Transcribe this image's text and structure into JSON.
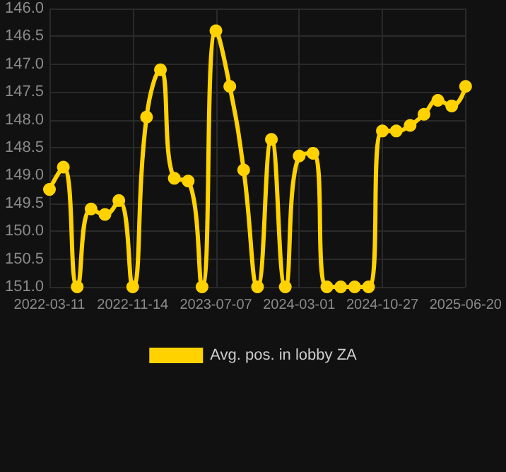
{
  "chart_data": {
    "type": "line",
    "categories": [
      "2022-03-11",
      null,
      null,
      null,
      null,
      null,
      "2022-11-14",
      null,
      null,
      null,
      null,
      null,
      "2023-07-07",
      null,
      null,
      null,
      null,
      null,
      "2024-03-01",
      null,
      null,
      null,
      null,
      null,
      "2024-10-27",
      null,
      null,
      null,
      null,
      null,
      "2025-06-20"
    ],
    "series": [
      {
        "name": "Avg. pos. in lobby ZA",
        "color": "#ffd200",
        "values": [
          149.25,
          148.85,
          151.0,
          149.6,
          149.7,
          149.45,
          151.0,
          147.95,
          147.1,
          149.05,
          149.1,
          151.0,
          146.4,
          147.4,
          148.9,
          151.0,
          148.35,
          151.0,
          148.65,
          148.6,
          151.0,
          151.0,
          151.0,
          151.0,
          148.2,
          148.2,
          148.1,
          147.9,
          147.65,
          147.75,
          147.4
        ]
      }
    ],
    "ylim": [
      151.0,
      146.0
    ],
    "yticks": [
      {
        "value": 146,
        "label": "146.0"
      },
      {
        "value": 146.5,
        "label": "146.5"
      },
      {
        "value": 147,
        "label": "147.0"
      },
      {
        "value": 147.5,
        "label": "147.5"
      },
      {
        "value": 148,
        "label": "148.0"
      },
      {
        "value": 148.5,
        "label": "148.5"
      },
      {
        "value": 149,
        "label": "149.0"
      },
      {
        "value": 149.5,
        "label": "149.5"
      },
      {
        "value": 150,
        "label": "150.0"
      },
      {
        "value": 150.5,
        "label": "150.5"
      },
      {
        "value": 151,
        "label": "151.0"
      }
    ],
    "grid": true,
    "legend": "bottom",
    "marker": "circle",
    "line_style": "solid"
  }
}
